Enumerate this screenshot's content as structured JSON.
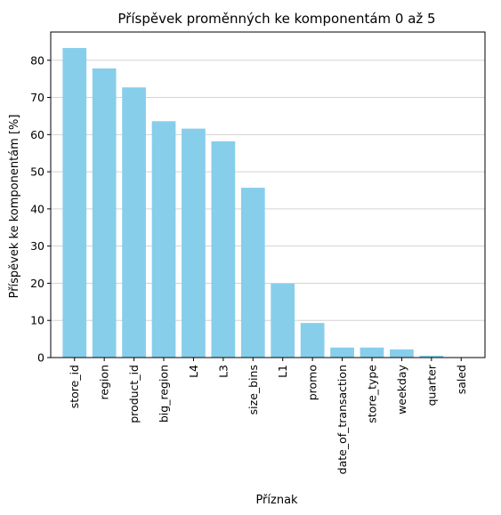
{
  "chart_data": {
    "type": "bar",
    "title": "Příspěvek proměnných ke komponentám 0 až 5",
    "xlabel": "Příznak",
    "ylabel": "Příspěvek ke komponentám [%]",
    "categories": [
      "store_id",
      "region",
      "product_id",
      "big_region",
      "L4",
      "L3",
      "size_bins",
      "L1",
      "promo",
      "date_of_transaction",
      "store_type",
      "weekday",
      "quarter",
      "saled"
    ],
    "values": [
      83.3,
      77.8,
      72.7,
      63.6,
      61.6,
      58.2,
      45.7,
      19.9,
      9.3,
      2.7,
      2.7,
      2.2,
      0.5,
      0.1
    ],
    "ylim": [
      0,
      87.6
    ],
    "yticks": [
      "0",
      "10",
      "20",
      "30",
      "40",
      "50",
      "60",
      "70",
      "80"
    ],
    "grid": "y",
    "colors": {
      "bar": "#87ceeb",
      "grid": "#d3d3d3",
      "axis": "#000000"
    }
  }
}
